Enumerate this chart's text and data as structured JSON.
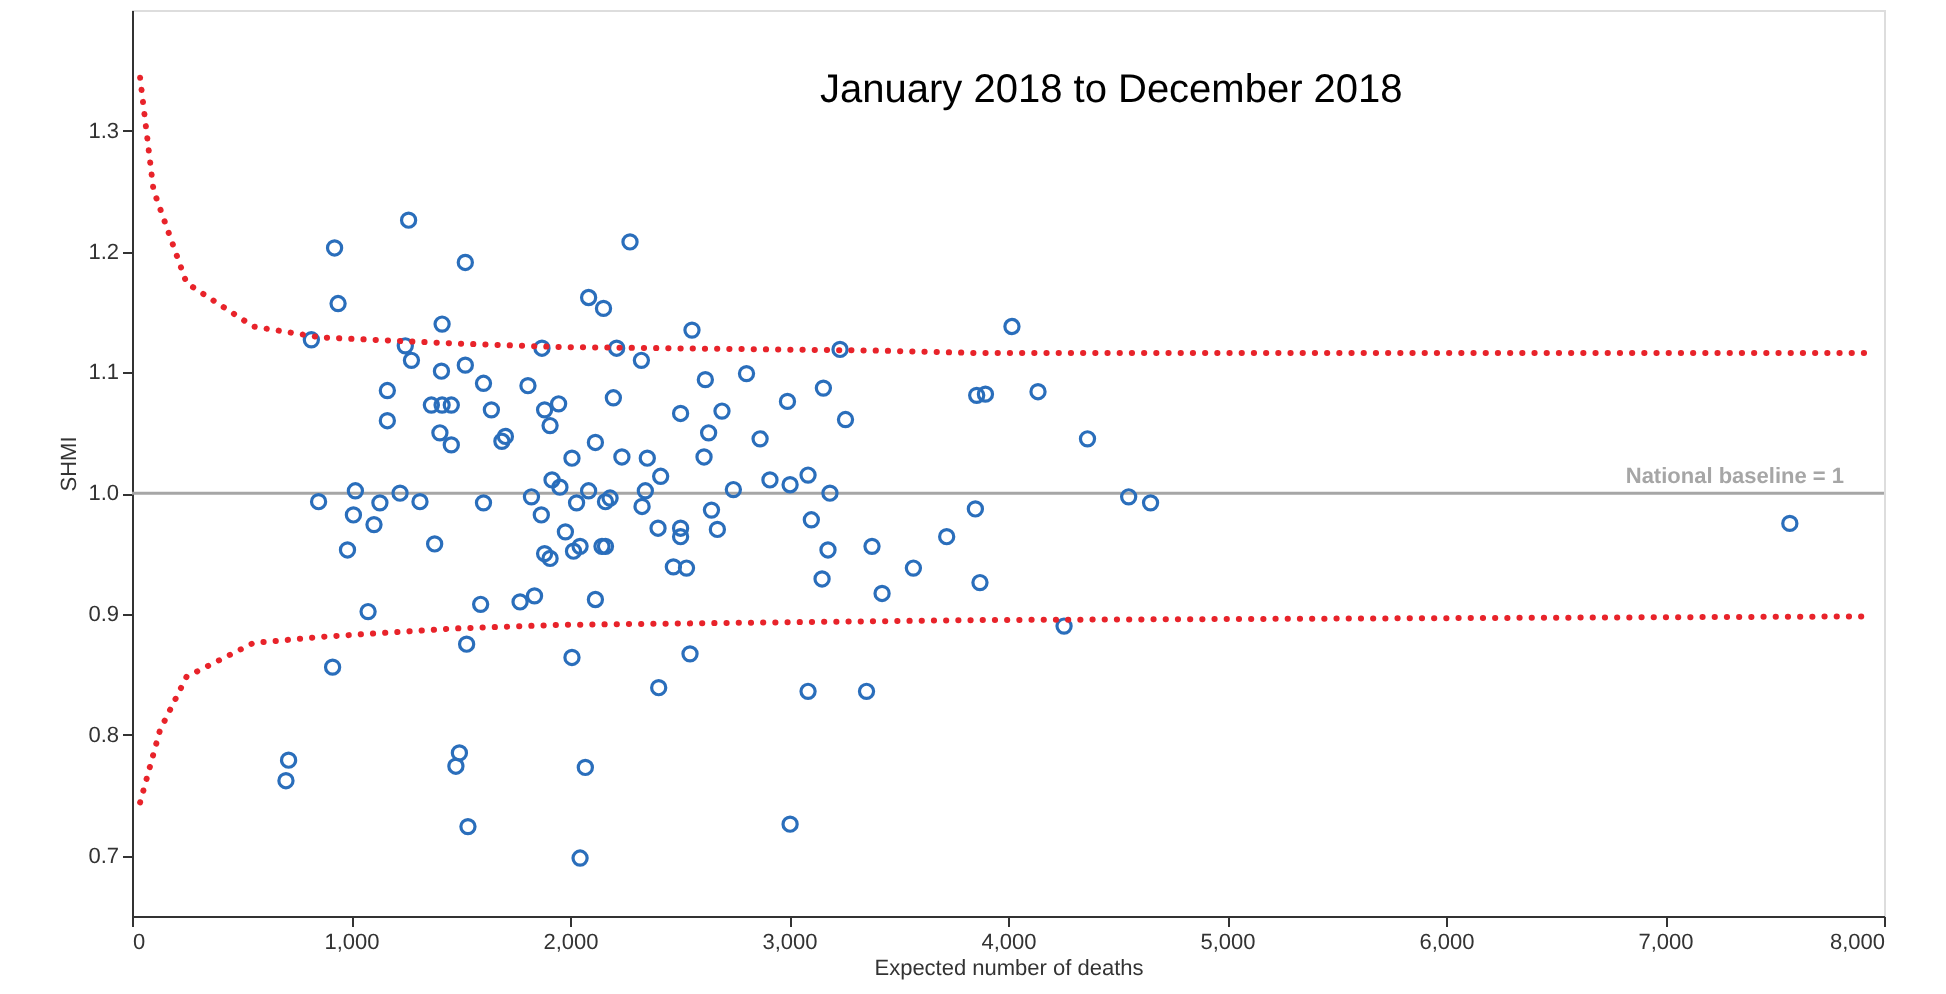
{
  "chart_data": {
    "type": "scatter",
    "title": "January 2018 to December 2018",
    "xlabel": "Expected number of deaths",
    "ylabel": "SHMI",
    "xlim": [
      0,
      8000
    ],
    "xticks": [
      0,
      {
        "value": 1000,
        "label": "1,000"
      },
      {
        "value": 2000,
        "label": "2,000"
      },
      {
        "value": 3000,
        "label": "3,000"
      },
      {
        "value": 4000,
        "label": "4,000"
      },
      {
        "value": 5000,
        "label": "5,000"
      },
      {
        "value": 6000,
        "label": "6,000"
      },
      {
        "value": 7000,
        "label": "7,000"
      },
      {
        "value": 8000,
        "label": "8,000"
      }
    ],
    "ylim": [
      0.65,
      1.4
    ],
    "yticks": [
      0.7,
      0.8,
      0.9,
      {
        "value": 1,
        "label": "1.0"
      },
      1.1,
      1.2,
      1.3
    ],
    "ref_lines": [
      {
        "axis": "y",
        "value": 1,
        "label": "National baseline = 1",
        "color": "#a6a6a6",
        "line_style": "solid"
      }
    ],
    "series": [
      {
        "type": "scatter",
        "color": "#2a6ebb",
        "marker": "circle",
        "x": [
          1263,
          925,
          1522,
          941,
          1416,
          819,
          1248,
          1276,
          1872,
          1413,
          1522,
          1605,
          1808,
          1166,
          1367,
          1416,
          1458,
          1641,
          1884,
          1166,
          1909,
          1406,
          1458,
          1689,
          1705,
          1918,
          1020,
          852,
          1224,
          1315,
          1132,
          1011,
          1105,
          1605,
          1824,
          1869,
          984,
          1382,
          1884,
          1909,
          1592,
          1838,
          1772,
          1078,
          1528,
          916,
          715,
          703,
          1495,
          1479,
          1534,
          2274,
          2085,
          2153,
          2557,
          2213,
          2326,
          3233,
          1948,
          2198,
          2618,
          2806,
          2505,
          2694,
          2993,
          3157,
          3258,
          2633,
          2868,
          2116,
          2009,
          2237,
          2353,
          2414,
          2612,
          1954,
          2913,
          3005,
          3087,
          2746,
          3187,
          2085,
          2030,
          2162,
          2183,
          2344,
          2329,
          2646,
          3102,
          1979,
          2402,
          2505,
          2505,
          2673,
          2016,
          2046,
          2146,
          2162,
          2472,
          2532,
          3178,
          3379,
          3720,
          3568,
          3151,
          3425,
          2116,
          2009,
          2548,
          2405,
          3087,
          3354,
          2070,
          3005,
          2046,
          4018,
          3857,
          3897,
          4137,
          4363,
          4551,
          4651,
          3851,
          7570,
          3872,
          4256
        ],
        "values": [
          1.226,
          1.203,
          1.191,
          1.157,
          1.14,
          1.127,
          1.122,
          1.11,
          1.12,
          1.101,
          1.106,
          1.091,
          1.089,
          1.085,
          1.073,
          1.073,
          1.073,
          1.069,
          1.069,
          1.06,
          1.056,
          1.05,
          1.04,
          1.043,
          1.047,
          1.011,
          1.002,
          0.993,
          1.0,
          0.993,
          0.992,
          0.982,
          0.974,
          0.992,
          0.997,
          0.982,
          0.953,
          0.958,
          0.95,
          0.946,
          0.908,
          0.915,
          0.91,
          0.902,
          0.875,
          0.856,
          0.779,
          0.762,
          0.785,
          0.774,
          0.724,
          1.208,
          1.162,
          1.153,
          1.135,
          1.12,
          1.11,
          1.119,
          1.074,
          1.079,
          1.094,
          1.099,
          1.066,
          1.068,
          1.076,
          1.087,
          1.061,
          1.05,
          1.045,
          1.042,
          1.029,
          1.03,
          1.029,
          1.014,
          1.03,
          1.005,
          1.011,
          1.007,
          1.015,
          1.003,
          1.0,
          1.002,
          0.992,
          0.993,
          0.996,
          1.002,
          0.989,
          0.986,
          0.978,
          0.968,
          0.971,
          0.971,
          0.964,
          0.97,
          0.952,
          0.956,
          0.956,
          0.956,
          0.939,
          0.938,
          0.953,
          0.956,
          0.964,
          0.938,
          0.929,
          0.917,
          0.912,
          0.864,
          0.867,
          0.839,
          0.836,
          0.836,
          0.773,
          0.726,
          0.698,
          1.138,
          1.081,
          1.082,
          1.084,
          1.045,
          0.997,
          0.992,
          0.987,
          0.975,
          0.926,
          0.89
        ]
      },
      {
        "type": "line",
        "color": "#e8232a",
        "marker": "none",
        "line_style": "dotted",
        "x": [
          37,
          98,
          249,
          554,
          858,
          1467,
          1954,
          3416,
          3872,
          7936
        ],
        "values": [
          1.344,
          1.251,
          1.174,
          1.138,
          1.129,
          1.124,
          1.121,
          1.118,
          1.116,
          1.116
        ]
      },
      {
        "type": "line",
        "color": "#e8232a",
        "marker": "none",
        "line_style": "dotted",
        "x": [
          37,
          128,
          249,
          554,
          858,
          1467,
          1954,
          3872,
          7936
        ],
        "values": [
          0.744,
          0.804,
          0.848,
          0.876,
          0.881,
          0.888,
          0.891,
          0.895,
          0.898
        ]
      }
    ]
  }
}
